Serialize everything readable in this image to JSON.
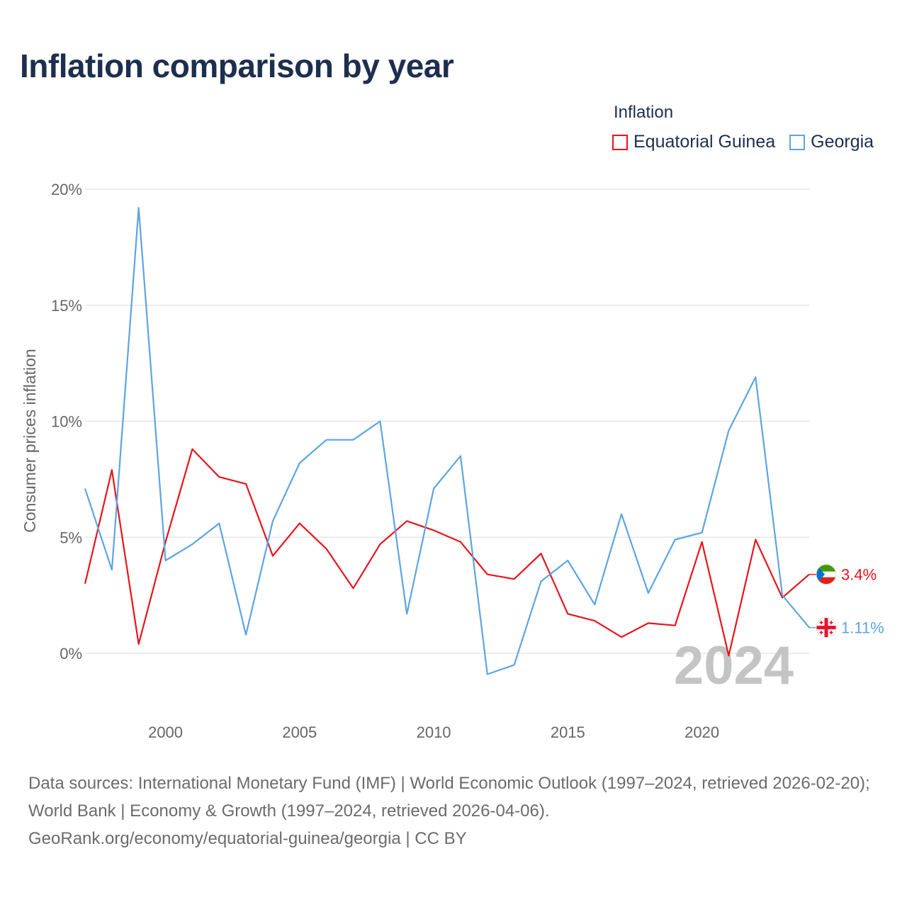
{
  "title": "Inflation comparison by year",
  "legend": {
    "title": "Inflation",
    "items": [
      {
        "label": "Equatorial Guinea",
        "color": "#e8141b"
      },
      {
        "label": "Georgia",
        "color": "#5da4e4"
      }
    ]
  },
  "chart_data": {
    "type": "line",
    "title": "Inflation comparison by year",
    "xlabel": "",
    "ylabel": "Consumer prices inflation",
    "xlim": [
      1997,
      2024
    ],
    "ylim": [
      -2,
      20
    ],
    "x_ticks": [
      2000,
      2005,
      2010,
      2015,
      2020
    ],
    "x_tick_labels": [
      "2000",
      "2005",
      "2010",
      "2015",
      "2020"
    ],
    "y_ticks": [
      0,
      5,
      10,
      15,
      20
    ],
    "y_tick_labels": [
      "0%",
      "5%",
      "10%",
      "15%",
      "20%"
    ],
    "grid": true,
    "legend_position": "top-right",
    "year_stamp": "2024",
    "x": [
      1997,
      1998,
      1999,
      2000,
      2001,
      2002,
      2003,
      2004,
      2005,
      2006,
      2007,
      2008,
      2009,
      2010,
      2011,
      2012,
      2013,
      2014,
      2015,
      2016,
      2017,
      2018,
      2019,
      2020,
      2021,
      2022,
      2023,
      2024
    ],
    "series": [
      {
        "name": "Equatorial Guinea",
        "color": "#e8141b",
        "values": [
          3.0,
          7.9,
          0.4,
          4.8,
          8.8,
          7.6,
          7.3,
          4.2,
          5.6,
          4.5,
          2.8,
          4.7,
          5.7,
          5.3,
          4.8,
          3.4,
          3.2,
          4.3,
          1.7,
          1.4,
          0.7,
          1.3,
          1.2,
          4.8,
          -0.1,
          4.9,
          2.4,
          3.4
        ],
        "end_label": "3.4%"
      },
      {
        "name": "Georgia",
        "color": "#5da4e4",
        "values": [
          7.1,
          3.6,
          19.2,
          4.0,
          4.7,
          5.6,
          0.8,
          5.7,
          8.2,
          9.2,
          9.2,
          10.0,
          1.7,
          7.1,
          8.5,
          -0.9,
          -0.5,
          3.1,
          4.0,
          2.1,
          6.0,
          2.6,
          4.9,
          5.2,
          9.6,
          11.9,
          2.5,
          1.11
        ],
        "end_label": "1.11%"
      }
    ]
  },
  "source": {
    "text": "Data sources: International Monetary Fund (IMF) | World Economic Outlook (1997–2024, retrieved 2026-02-20); World Bank | Economy & Growth (1997–2024, retrieved 2026-04-06).",
    "credit": "GeoRank.org/economy/equatorial-guinea/georgia | CC BY"
  }
}
